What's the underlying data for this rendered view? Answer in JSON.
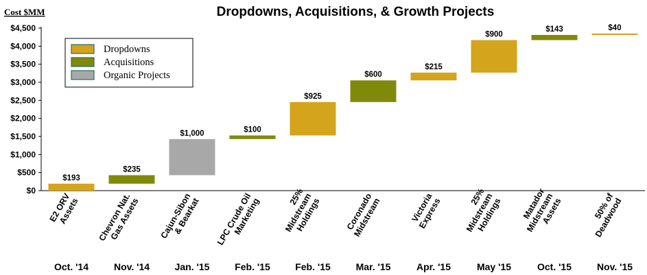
{
  "chart_data": {
    "type": "bar",
    "subtype": "waterfall",
    "title": "Dropdowns, Acquisitions, & Growth Projects",
    "ylabel": "Cost $MM",
    "xlabel": "",
    "ylim": [
      0,
      4500
    ],
    "yticks": [
      "$0",
      "$500",
      "$1,000",
      "$1,500",
      "$2,000",
      "$2,500",
      "$3,000",
      "$3,500",
      "$4,000",
      "$4,500"
    ],
    "grid": false,
    "legend_position": "top-left",
    "legend": [
      {
        "name": "Dropdowns",
        "color": "#D4A41C"
      },
      {
        "name": "Acquisitions",
        "color": "#7F8A0A"
      },
      {
        "name": "Organic Projects",
        "color": "#A8A8A8"
      }
    ],
    "categories": [
      {
        "name_lines": [
          "E2 ORV",
          "Assets"
        ],
        "date": "Oct. '14",
        "type": "Dropdowns",
        "value": 193,
        "label": "$193"
      },
      {
        "name_lines": [
          "Chevron Nat.",
          "Gas Assets"
        ],
        "date": "Nov. '14",
        "type": "Acquisitions",
        "value": 235,
        "label": "$235"
      },
      {
        "name_lines": [
          "Cajun-Sibon",
          "& Bearkat"
        ],
        "date": "Jan. '15",
        "type": "Organic Projects",
        "value": 1000,
        "label": "$1,000"
      },
      {
        "name_lines": [
          "LPC Crude Oil",
          "Marketing"
        ],
        "date": "Feb. '15",
        "type": "Acquisitions",
        "value": 100,
        "label": "$100"
      },
      {
        "name_lines": [
          "25%",
          "Midstream",
          "Holdings"
        ],
        "date": "Feb. '15",
        "type": "Dropdowns",
        "value": 925,
        "label": "$925"
      },
      {
        "name_lines": [
          "Coronado",
          "Midstream"
        ],
        "date": "Mar. '15",
        "type": "Acquisitions",
        "value": 600,
        "label": "$600"
      },
      {
        "name_lines": [
          "Victoria",
          "Express"
        ],
        "date": "Apr. '15",
        "type": "Dropdowns",
        "value": 215,
        "label": "$215"
      },
      {
        "name_lines": [
          "25%",
          "Midstream",
          "Holdings"
        ],
        "date": "May '15",
        "type": "Dropdowns",
        "value": 900,
        "label": "$900"
      },
      {
        "name_lines": [
          "Matador",
          "Midstream",
          "Assets"
        ],
        "date": "Oct. '15",
        "type": "Acquisitions",
        "value": 143,
        "label": "$143"
      },
      {
        "name_lines": [
          "50% of",
          "Deadwood"
        ],
        "date": "Nov. '15",
        "type": "Dropdowns",
        "value": 40,
        "label": "$40"
      }
    ]
  }
}
